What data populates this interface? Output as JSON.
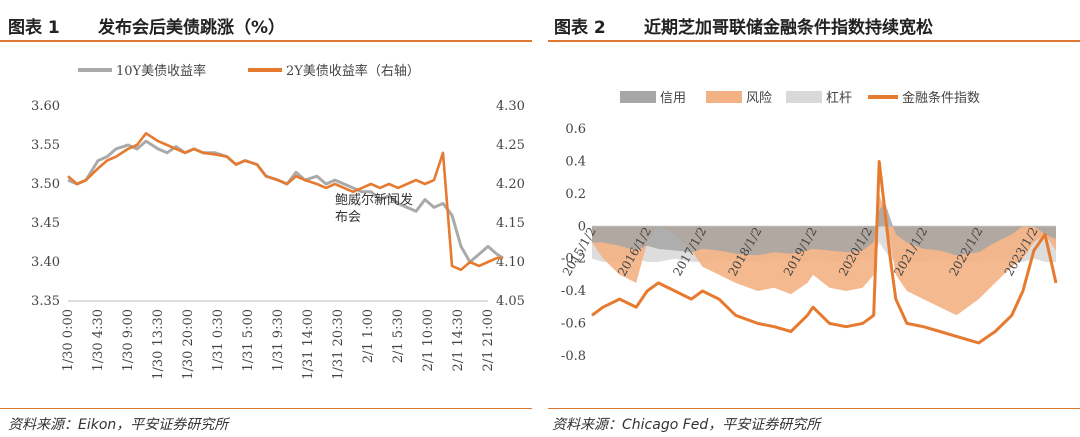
{
  "chart_data": [
    {
      "type": "line",
      "figure_label": "图表 1",
      "title": "发布会后美债跳涨（%）",
      "source": "资料来源：Eikon，平安证券研究所",
      "legend": {
        "placement": "top",
        "entries": [
          "10Y美债收益率",
          "2Y美债收益率（右轴）"
        ]
      },
      "x_ticks": [
        "1/30 0:00",
        "1/30 4:30",
        "1/30 9:00",
        "1/30 13:30",
        "1/30 20:00",
        "1/31 0:30",
        "1/31 5:00",
        "1/31 9:30",
        "1/31 14:00",
        "1/31 20:30",
        "2/1 1:00",
        "2/1 5:30",
        "2/1 10:00",
        "2/1 14:30",
        "2/1 21:00"
      ],
      "y_left": {
        "ticks": [
          "3.35",
          "3.40",
          "3.45",
          "3.50",
          "3.55",
          "3.60"
        ],
        "range": [
          3.35,
          3.6
        ]
      },
      "y_right": {
        "ticks": [
          "4.05",
          "4.10",
          "4.15",
          "4.20",
          "4.25",
          "4.30"
        ],
        "range": [
          4.05,
          4.3
        ]
      },
      "annotation": {
        "lines": [
          "鲍威尔新闻发",
          "布会"
        ]
      },
      "grid": false,
      "series": [
        {
          "name": "10Y美债收益率",
          "axis": "left",
          "color": "#aaaaaa",
          "x": [
            0,
            0.3,
            0.6,
            1.0,
            1.3,
            1.6,
            2.0,
            2.3,
            2.6,
            3.0,
            3.3,
            3.6,
            3.9,
            4.2,
            4.5,
            4.9,
            5.3,
            5.6,
            5.9,
            6.3,
            6.6,
            7.0,
            7.3,
            7.6,
            7.9,
            8.3,
            8.6,
            8.9,
            9.2,
            9.5,
            9.8,
            10.1,
            10.4,
            10.7,
            11.0,
            11.3,
            11.6,
            11.9,
            12.2,
            12.5,
            12.8,
            13.1,
            13.4,
            13.7,
            14.0,
            14.3,
            14.5
          ],
          "values": [
            3.505,
            3.5,
            3.505,
            3.53,
            3.535,
            3.545,
            3.55,
            3.545,
            3.555,
            3.545,
            3.54,
            3.548,
            3.54,
            3.545,
            3.54,
            3.54,
            3.535,
            3.525,
            3.53,
            3.525,
            3.51,
            3.505,
            3.5,
            3.515,
            3.505,
            3.51,
            3.5,
            3.505,
            3.5,
            3.495,
            3.49,
            3.49,
            3.48,
            3.485,
            3.475,
            3.47,
            3.465,
            3.48,
            3.47,
            3.475,
            3.46,
            3.42,
            3.4,
            3.41,
            3.42,
            3.41,
            3.405
          ]
        },
        {
          "name": "2Y美债收益率（右轴）",
          "axis": "right",
          "color": "#e67a30",
          "x": [
            0,
            0.3,
            0.6,
            1.0,
            1.3,
            1.6,
            2.0,
            2.3,
            2.6,
            3.0,
            3.3,
            3.6,
            3.9,
            4.2,
            4.5,
            4.9,
            5.3,
            5.6,
            5.9,
            6.3,
            6.6,
            7.0,
            7.3,
            7.6,
            7.9,
            8.3,
            8.6,
            8.9,
            9.2,
            9.5,
            9.8,
            10.1,
            10.4,
            10.7,
            11.0,
            11.3,
            11.6,
            11.9,
            12.2,
            12.5,
            12.8,
            13.1,
            13.4,
            13.7,
            14.0,
            14.3,
            14.5
          ],
          "values": [
            4.21,
            4.2,
            4.205,
            4.22,
            4.23,
            4.235,
            4.245,
            4.25,
            4.265,
            4.255,
            4.25,
            4.245,
            4.24,
            4.245,
            4.24,
            4.238,
            4.235,
            4.225,
            4.23,
            4.225,
            4.21,
            4.205,
            4.2,
            4.21,
            4.205,
            4.2,
            4.195,
            4.2,
            4.195,
            4.19,
            4.195,
            4.2,
            4.195,
            4.2,
            4.195,
            4.2,
            4.205,
            4.2,
            4.205,
            4.24,
            4.095,
            4.09,
            4.1,
            4.095,
            4.1,
            4.105,
            4.105
          ]
        }
      ]
    },
    {
      "type": "area",
      "figure_label": "图表 2",
      "title": "近期芝加哥联储金融条件指数持续宽松",
      "source": "资料来源：Chicago Fed，平安证券研究所",
      "legend": {
        "placement": "top",
        "entries": [
          "信用",
          "风险",
          "杠杆",
          "金融条件指数"
        ]
      },
      "x_ticks": [
        "2015/1/2",
        "2016/1/2",
        "2017/1/2",
        "2018/1/2",
        "2019/1/2",
        "2020/1/2",
        "2021/1/2",
        "2022/1/2",
        "2023/1/2"
      ],
      "y_ticks": [
        "0.6",
        "0.4",
        "0.2",
        "0",
        "-0.2",
        "-0.4",
        "-0.6",
        "-0.8"
      ],
      "y_range": [
        -0.9,
        0.65
      ],
      "grid": false,
      "x": [
        2015.0,
        2015.2,
        2015.5,
        2015.8,
        2016.0,
        2016.2,
        2016.5,
        2016.8,
        2017.0,
        2017.3,
        2017.6,
        2018.0,
        2018.3,
        2018.6,
        2018.9,
        2019.0,
        2019.3,
        2019.6,
        2019.9,
        2020.1,
        2020.2,
        2020.3,
        2020.4,
        2020.5,
        2020.7,
        2021.0,
        2021.3,
        2021.6,
        2022.0,
        2022.3,
        2022.6,
        2022.8,
        2023.0,
        2023.2,
        2023.4
      ],
      "series": [
        {
          "name": "信用",
          "color": "#a6a6a6",
          "values": [
            -0.1,
            -0.1,
            -0.12,
            -0.15,
            -0.12,
            -0.14,
            -0.15,
            -0.16,
            -0.14,
            -0.15,
            -0.17,
            -0.18,
            -0.16,
            -0.17,
            -0.15,
            -0.14,
            -0.15,
            -0.16,
            -0.15,
            -0.1,
            0.1,
            0.15,
            0.05,
            -0.05,
            -0.1,
            -0.14,
            -0.15,
            -0.18,
            -0.16,
            -0.1,
            -0.05,
            0.0,
            0.0,
            -0.05,
            -0.08
          ]
        },
        {
          "name": "风险",
          "color": "#f4b183",
          "values": [
            -0.1,
            -0.2,
            -0.3,
            -0.35,
            -0.1,
            0.0,
            -0.05,
            -0.15,
            -0.25,
            -0.3,
            -0.35,
            -0.4,
            -0.38,
            -0.42,
            -0.35,
            -0.3,
            -0.38,
            -0.4,
            -0.38,
            -0.3,
            0.2,
            0.1,
            -0.1,
            -0.3,
            -0.4,
            -0.45,
            -0.5,
            -0.55,
            -0.45,
            -0.35,
            -0.25,
            -0.2,
            -0.1,
            -0.05,
            -0.15
          ]
        },
        {
          "name": "杠杆",
          "color": "#d9d9d9",
          "values": [
            -0.2,
            -0.22,
            -0.22,
            -0.2,
            -0.22,
            -0.22,
            -0.2,
            -0.22,
            -0.22,
            -0.2,
            -0.22,
            -0.22,
            -0.2,
            -0.22,
            -0.22,
            -0.2,
            -0.22,
            -0.22,
            -0.2,
            -0.22,
            -0.1,
            -0.15,
            -0.2,
            -0.22,
            -0.22,
            -0.22,
            -0.2,
            -0.22,
            -0.22,
            -0.2,
            -0.22,
            -0.22,
            -0.2,
            -0.22,
            -0.22
          ]
        },
        {
          "name": "金融条件指数",
          "color": "#e67a30",
          "values": [
            -0.55,
            -0.5,
            -0.45,
            -0.5,
            -0.4,
            -0.35,
            -0.4,
            -0.45,
            -0.4,
            -0.45,
            -0.55,
            -0.6,
            -0.62,
            -0.65,
            -0.55,
            -0.5,
            -0.6,
            -0.62,
            -0.6,
            -0.55,
            0.4,
            0.1,
            -0.2,
            -0.45,
            -0.6,
            -0.62,
            -0.65,
            -0.68,
            -0.72,
            -0.65,
            -0.55,
            -0.4,
            -0.15,
            -0.05,
            -0.35
          ]
        }
      ]
    }
  ]
}
